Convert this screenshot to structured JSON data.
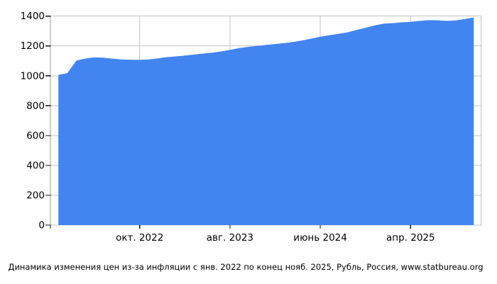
{
  "caption": "Динамика изменения цен из-за инфляции с янв. 2022 по конец нояб. 2025, Рубль, Россия, www.statbureau.org",
  "chart_data": {
    "type": "area",
    "title": "",
    "xlabel": "",
    "ylabel": "",
    "x_period_from_caption": "с янв. 2022 по конец нояб. 2025",
    "currency_from_caption": "Рубль",
    "country_from_caption": "Россия",
    "source_from_caption": "www.statbureau.org",
    "series": [
      {
        "start_month_index_label": "янв. 2022",
        "values": [
          1006,
          1018,
          1102,
          1116,
          1124,
          1121,
          1115,
          1110,
          1108,
          1107,
          1110,
          1117,
          1125,
          1130,
          1136,
          1142,
          1149,
          1155,
          1163,
          1174,
          1186,
          1194,
          1200,
          1207,
          1213,
          1219,
          1227,
          1237,
          1249,
          1262,
          1272,
          1281,
          1291,
          1307,
          1322,
          1337,
          1349,
          1353,
          1358,
          1362,
          1368,
          1373,
          1372,
          1368,
          1371,
          1381,
          1390
        ]
      }
    ],
    "x_ticks": [
      {
        "month_index": 9,
        "label": "окт. 2022"
      },
      {
        "month_index": 19,
        "label": "авг. 2023"
      },
      {
        "month_index": 29,
        "label": "июнь 2024"
      },
      {
        "month_index": 39,
        "label": "апр. 2025"
      }
    ],
    "y_ticks": [
      0,
      200,
      400,
      600,
      800,
      1000,
      1200,
      1400
    ],
    "ylim": [
      0,
      1400
    ],
    "grid": true,
    "legend_position": "none",
    "colors": {
      "area_fill": "#4285F0",
      "gridline": "#C4C4C4",
      "axis_line": "#999999",
      "tick": "#111111",
      "label_text": "#000000",
      "background": "#FFFFFF"
    }
  }
}
